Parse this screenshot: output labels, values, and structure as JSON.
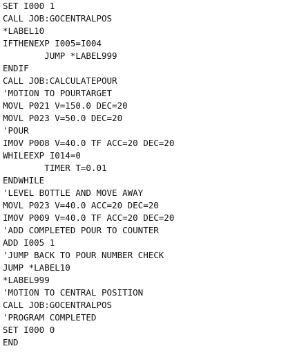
{
  "editor": {
    "lines": [
      "SET I000 1",
      "CALL JOB:GOCENTRALPOS",
      "*LABEL10",
      "IFTHENEXP I005=I004",
      "        JUMP *LABEL999",
      "ENDIF",
      "CALL JOB:CALCULATEPOUR",
      "'MOTION TO POURTARGET",
      "MOVL P021 V=150.0 DEC=20",
      "MOVL P023 V=50.0 DEC=20",
      "'POUR",
      "IMOV P008 V=40.0 TF ACC=20 DEC=20",
      "WHILEEXP I014=0",
      "        TIMER T=0.01",
      "ENDWHILE",
      "'LEVEL BOTTLE AND MOVE AWAY",
      "MOVL P023 V=40.0 ACC=20 DEC=20",
      "IMOV P009 V=40.0 TF ACC=20 DEC=20",
      "'ADD COMPLETED POUR TO COUNTER",
      "ADD I005 1",
      "'JUMP BACK TO POUR NUMBER CHECK",
      "JUMP *LABEL10",
      "*LABEL999",
      "'MOTION TO CENTRAL POSITION",
      "CALL JOB:GOCENTRALPOS",
      "'PROGRAM COMPLETED",
      "SET I000 0",
      "END"
    ]
  }
}
